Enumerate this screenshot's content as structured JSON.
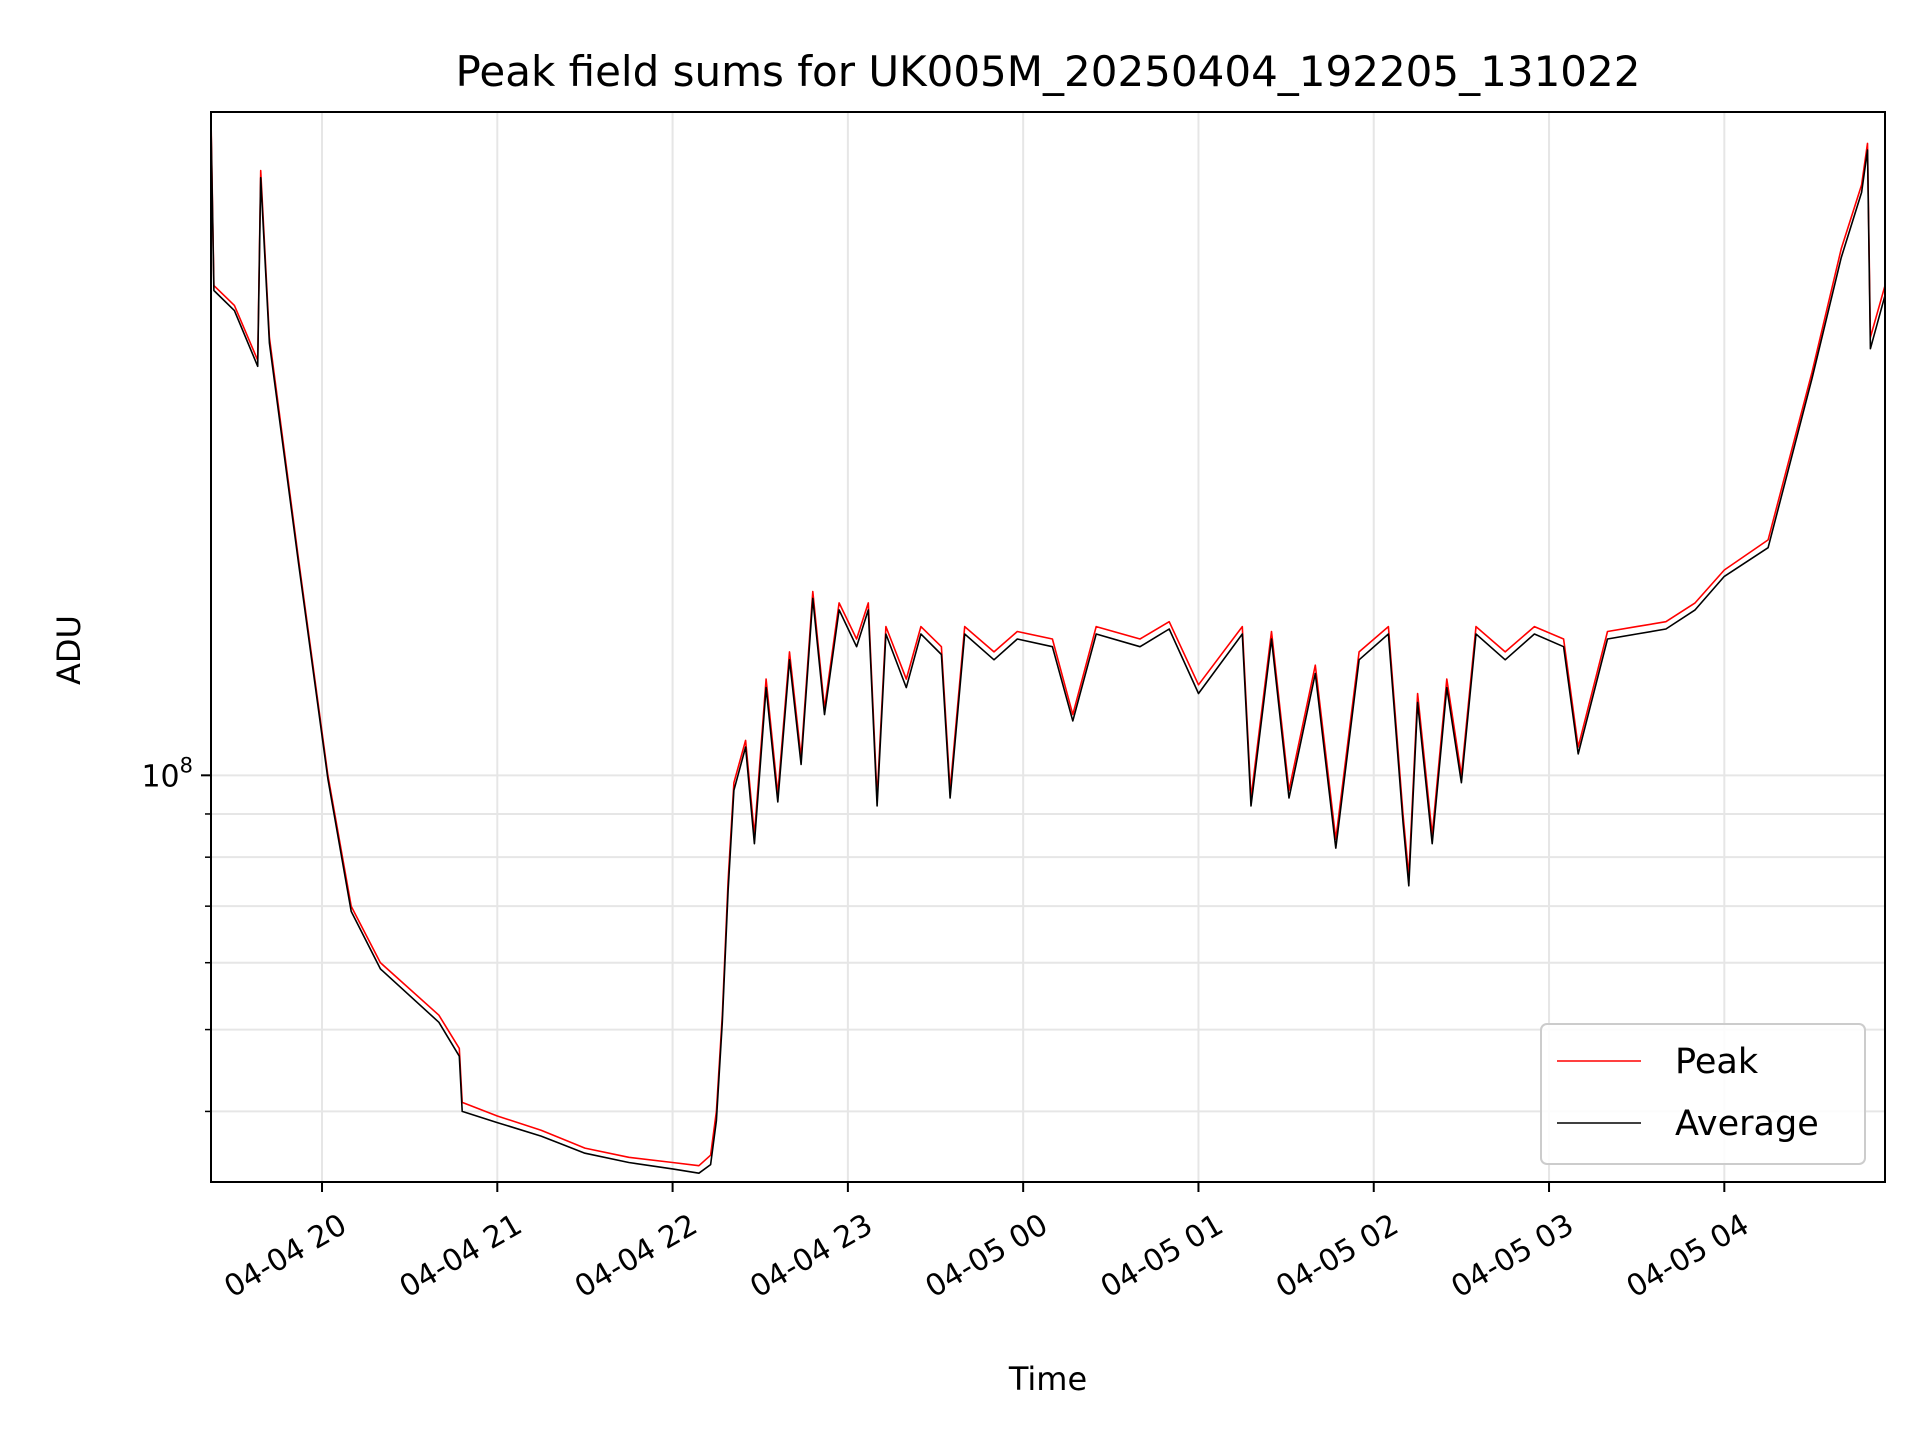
{
  "chart_data": {
    "type": "line",
    "title": "Peak field sums for UK005M_20250404_192205_131022",
    "xlabel": "Time",
    "ylabel": "ADU",
    "yscale": "log",
    "grid": true,
    "legend_position": "bottom-right",
    "xlim": [
      "2025-04-04 19:22",
      "2025-04-05 04:55"
    ],
    "ylim": [
      33000000,
      610000000
    ],
    "x_ticks": [
      {
        "value": "2025-04-04 20:00",
        "label": "04-04 20"
      },
      {
        "value": "2025-04-04 21:00",
        "label": "04-04 21"
      },
      {
        "value": "2025-04-04 22:00",
        "label": "04-04 22"
      },
      {
        "value": "2025-04-04 23:00",
        "label": "04-04 23"
      },
      {
        "value": "2025-04-05 00:00",
        "label": "04-05 00"
      },
      {
        "value": "2025-04-05 01:00",
        "label": "04-05 01"
      },
      {
        "value": "2025-04-05 02:00",
        "label": "04-05 02"
      },
      {
        "value": "2025-04-05 03:00",
        "label": "04-05 03"
      },
      {
        "value": "2025-04-05 04:00",
        "label": "04-05 04"
      }
    ],
    "y_major_ticks": [
      {
        "value": 100000000,
        "base": "10",
        "exponent": "8"
      }
    ],
    "y_minor_ticks": [
      40000000,
      50000000,
      60000000,
      70000000,
      80000000,
      90000000
    ],
    "series": [
      {
        "name": "Peak",
        "color": "#ff0000",
        "points": [
          [
            "2025-04-04 19:22",
            600000000
          ],
          [
            "2025-04-04 19:23",
            380000000
          ],
          [
            "2025-04-04 19:30",
            360000000
          ],
          [
            "2025-04-04 19:38",
            310000000
          ],
          [
            "2025-04-04 19:39",
            520000000
          ],
          [
            "2025-04-04 19:42",
            330000000
          ],
          [
            "2025-04-04 19:52",
            180000000
          ],
          [
            "2025-04-04 20:02",
            100000000
          ],
          [
            "2025-04-04 20:10",
            70000000
          ],
          [
            "2025-04-04 20:20",
            60000000
          ],
          [
            "2025-04-04 20:40",
            52000000
          ],
          [
            "2025-04-04 20:47",
            47500000
          ],
          [
            "2025-04-04 20:48",
            41000000
          ],
          [
            "2025-04-04 21:00",
            39500000
          ],
          [
            "2025-04-04 21:15",
            38000000
          ],
          [
            "2025-04-04 21:30",
            36200000
          ],
          [
            "2025-04-04 21:45",
            35300000
          ],
          [
            "2025-04-04 22:00",
            34800000
          ],
          [
            "2025-04-04 22:09",
            34500000
          ],
          [
            "2025-04-04 22:13",
            35500000
          ],
          [
            "2025-04-04 22:15",
            40000000
          ],
          [
            "2025-04-04 22:17",
            52000000
          ],
          [
            "2025-04-04 22:19",
            75000000
          ],
          [
            "2025-04-04 22:21",
            98000000
          ],
          [
            "2025-04-04 22:25",
            110000000
          ],
          [
            "2025-04-04 22:28",
            85000000
          ],
          [
            "2025-04-04 22:32",
            130000000
          ],
          [
            "2025-04-04 22:36",
            95000000
          ],
          [
            "2025-04-04 22:40",
            140000000
          ],
          [
            "2025-04-04 22:44",
            105000000
          ],
          [
            "2025-04-04 22:48",
            165000000
          ],
          [
            "2025-04-04 22:52",
            120000000
          ],
          [
            "2025-04-04 22:57",
            160000000
          ],
          [
            "2025-04-04 23:03",
            145000000
          ],
          [
            "2025-04-04 23:07",
            160000000
          ],
          [
            "2025-04-04 23:10",
            94000000
          ],
          [
            "2025-04-04 23:13",
            150000000
          ],
          [
            "2025-04-04 23:20",
            130000000
          ],
          [
            "2025-04-04 23:25",
            150000000
          ],
          [
            "2025-04-04 23:32",
            142000000
          ],
          [
            "2025-04-04 23:35",
            96000000
          ],
          [
            "2025-04-04 23:40",
            150000000
          ],
          [
            "2025-04-04 23:50",
            140000000
          ],
          [
            "2025-04-04 23:58",
            148000000
          ],
          [
            "2025-04-05 00:10",
            145000000
          ],
          [
            "2025-04-05 00:17",
            118000000
          ],
          [
            "2025-04-05 00:25",
            150000000
          ],
          [
            "2025-04-05 00:40",
            145000000
          ],
          [
            "2025-04-05 00:50",
            152000000
          ],
          [
            "2025-04-05 01:00",
            128000000
          ],
          [
            "2025-04-05 01:15",
            150000000
          ],
          [
            "2025-04-05 01:18",
            94000000
          ],
          [
            "2025-04-05 01:25",
            148000000
          ],
          [
            "2025-04-05 01:31",
            96000000
          ],
          [
            "2025-04-05 01:40",
            135000000
          ],
          [
            "2025-04-05 01:47",
            84000000
          ],
          [
            "2025-04-05 01:55",
            140000000
          ],
          [
            "2025-04-05 02:05",
            150000000
          ],
          [
            "2025-04-05 02:10",
            90000000
          ],
          [
            "2025-04-05 02:12",
            76000000
          ],
          [
            "2025-04-05 02:15",
            125000000
          ],
          [
            "2025-04-05 02:20",
            85000000
          ],
          [
            "2025-04-05 02:25",
            130000000
          ],
          [
            "2025-04-05 02:30",
            100000000
          ],
          [
            "2025-04-05 02:35",
            150000000
          ],
          [
            "2025-04-05 02:45",
            140000000
          ],
          [
            "2025-04-05 02:55",
            150000000
          ],
          [
            "2025-04-05 03:05",
            145000000
          ],
          [
            "2025-04-05 03:10",
            108000000
          ],
          [
            "2025-04-05 03:20",
            148000000
          ],
          [
            "2025-04-05 03:30",
            150000000
          ],
          [
            "2025-04-05 03:40",
            152000000
          ],
          [
            "2025-04-05 03:50",
            160000000
          ],
          [
            "2025-04-05 04:00",
            175000000
          ],
          [
            "2025-04-05 04:15",
            190000000
          ],
          [
            "2025-04-05 04:30",
            300000000
          ],
          [
            "2025-04-05 04:40",
            420000000
          ],
          [
            "2025-04-05 04:47",
            500000000
          ],
          [
            "2025-04-05 04:49",
            560000000
          ],
          [
            "2025-04-05 04:50",
            330000000
          ],
          [
            "2025-04-05 04:55",
            380000000
          ]
        ]
      },
      {
        "name": "Average",
        "color": "#000000",
        "points": [
          [
            "2025-04-04 19:22",
            590000000
          ],
          [
            "2025-04-04 19:23",
            375000000
          ],
          [
            "2025-04-04 19:30",
            355000000
          ],
          [
            "2025-04-04 19:38",
            305000000
          ],
          [
            "2025-04-04 19:39",
            510000000
          ],
          [
            "2025-04-04 19:42",
            325000000
          ],
          [
            "2025-04-04 19:52",
            178000000
          ],
          [
            "2025-04-04 20:02",
            99000000
          ],
          [
            "2025-04-04 20:10",
            69000000
          ],
          [
            "2025-04-04 20:20",
            59000000
          ],
          [
            "2025-04-04 20:40",
            51000000
          ],
          [
            "2025-04-04 20:47",
            46500000
          ],
          [
            "2025-04-04 20:48",
            40000000
          ],
          [
            "2025-04-04 21:00",
            38800000
          ],
          [
            "2025-04-04 21:15",
            37400000
          ],
          [
            "2025-04-04 21:30",
            35700000
          ],
          [
            "2025-04-04 21:45",
            34800000
          ],
          [
            "2025-04-04 22:00",
            34200000
          ],
          [
            "2025-04-04 22:09",
            33800000
          ],
          [
            "2025-04-04 22:13",
            34600000
          ],
          [
            "2025-04-04 22:15",
            39000000
          ],
          [
            "2025-04-04 22:17",
            51000000
          ],
          [
            "2025-04-04 22:19",
            73000000
          ],
          [
            "2025-04-04 22:21",
            96000000
          ],
          [
            "2025-04-04 22:25",
            108000000
          ],
          [
            "2025-04-04 22:28",
            83000000
          ],
          [
            "2025-04-04 22:32",
            127000000
          ],
          [
            "2025-04-04 22:36",
            93000000
          ],
          [
            "2025-04-04 22:40",
            137000000
          ],
          [
            "2025-04-04 22:44",
            103000000
          ],
          [
            "2025-04-04 22:48",
            162000000
          ],
          [
            "2025-04-04 22:52",
            118000000
          ],
          [
            "2025-04-04 22:57",
            157000000
          ],
          [
            "2025-04-04 23:03",
            142000000
          ],
          [
            "2025-04-04 23:07",
            157000000
          ],
          [
            "2025-04-04 23:10",
            92000000
          ],
          [
            "2025-04-04 23:13",
            147000000
          ],
          [
            "2025-04-04 23:20",
            127000000
          ],
          [
            "2025-04-04 23:25",
            147000000
          ],
          [
            "2025-04-04 23:32",
            139000000
          ],
          [
            "2025-04-04 23:35",
            94000000
          ],
          [
            "2025-04-04 23:40",
            147000000
          ],
          [
            "2025-04-04 23:50",
            137000000
          ],
          [
            "2025-04-04 23:58",
            145000000
          ],
          [
            "2025-04-05 00:10",
            142000000
          ],
          [
            "2025-04-05 00:17",
            116000000
          ],
          [
            "2025-04-05 00:25",
            147000000
          ],
          [
            "2025-04-05 00:40",
            142000000
          ],
          [
            "2025-04-05 00:50",
            149000000
          ],
          [
            "2025-04-05 01:00",
            125000000
          ],
          [
            "2025-04-05 01:15",
            147000000
          ],
          [
            "2025-04-05 01:18",
            92000000
          ],
          [
            "2025-04-05 01:25",
            145000000
          ],
          [
            "2025-04-05 01:31",
            94000000
          ],
          [
            "2025-04-05 01:40",
            132000000
          ],
          [
            "2025-04-05 01:47",
            82000000
          ],
          [
            "2025-04-05 01:55",
            137000000
          ],
          [
            "2025-04-05 02:05",
            147000000
          ],
          [
            "2025-04-05 02:10",
            88000000
          ],
          [
            "2025-04-05 02:12",
            74000000
          ],
          [
            "2025-04-05 02:15",
            122000000
          ],
          [
            "2025-04-05 02:20",
            83000000
          ],
          [
            "2025-04-05 02:25",
            127000000
          ],
          [
            "2025-04-05 02:30",
            98000000
          ],
          [
            "2025-04-05 02:35",
            147000000
          ],
          [
            "2025-04-05 02:45",
            137000000
          ],
          [
            "2025-04-05 02:55",
            147000000
          ],
          [
            "2025-04-05 03:05",
            142000000
          ],
          [
            "2025-04-05 03:10",
            106000000
          ],
          [
            "2025-04-05 03:20",
            145000000
          ],
          [
            "2025-04-05 03:30",
            147000000
          ],
          [
            "2025-04-05 03:40",
            149000000
          ],
          [
            "2025-04-05 03:50",
            157000000
          ],
          [
            "2025-04-05 04:00",
            172000000
          ],
          [
            "2025-04-05 04:15",
            186000000
          ],
          [
            "2025-04-05 04:30",
            295000000
          ],
          [
            "2025-04-05 04:40",
            410000000
          ],
          [
            "2025-04-05 04:47",
            490000000
          ],
          [
            "2025-04-05 04:49",
            550000000
          ],
          [
            "2025-04-05 04:50",
            320000000
          ],
          [
            "2025-04-05 04:55",
            370000000
          ]
        ]
      }
    ]
  }
}
